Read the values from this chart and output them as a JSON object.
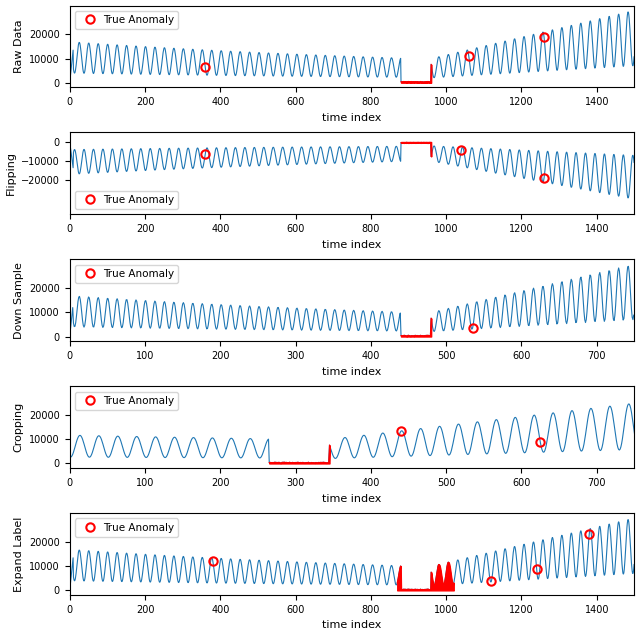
{
  "panels": [
    {
      "ylabel": "Raw Data",
      "xlim": [
        0,
        1500
      ],
      "ylim": [
        -2000,
        32000
      ],
      "yticks": [
        0,
        10000,
        20000
      ],
      "xticks": [
        0,
        200,
        400,
        600,
        800,
        1000,
        1200,
        1400
      ],
      "legend_loc": "upper left",
      "anomaly_fill": [
        880,
        960
      ],
      "anomaly_circles": [
        360,
        1060,
        1260
      ],
      "transform": "none",
      "crop_start": 0,
      "downsample": 1
    },
    {
      "ylabel": "Flipping",
      "xlim": [
        0,
        1500
      ],
      "ylim": [
        -38000,
        5000
      ],
      "yticks": [
        0,
        -10000,
        -20000
      ],
      "xticks": [
        0,
        200,
        400,
        600,
        800,
        1000,
        1200,
        1400
      ],
      "legend_loc": "lower left",
      "anomaly_fill": [
        880,
        960
      ],
      "anomaly_circles": [
        360,
        1040,
        1260
      ],
      "transform": "flip",
      "crop_start": 0,
      "downsample": 1
    },
    {
      "ylabel": "Down Sample",
      "xlim": [
        0,
        750
      ],
      "ylim": [
        -2000,
        32000
      ],
      "yticks": [
        0,
        10000,
        20000
      ],
      "xticks": [
        0,
        100,
        200,
        300,
        400,
        500,
        600,
        700
      ],
      "legend_loc": "upper left",
      "anomaly_fill": [
        440,
        480
      ],
      "anomaly_circles": [
        535
      ],
      "transform": "downsample",
      "crop_start": 0,
      "downsample": 2
    },
    {
      "ylabel": "Cropping",
      "xlim": [
        0,
        750
      ],
      "ylim": [
        -2000,
        32000
      ],
      "yticks": [
        0,
        10000,
        20000
      ],
      "xticks": [
        0,
        100,
        200,
        300,
        400,
        500,
        600,
        700
      ],
      "legend_loc": "upper left",
      "anomaly_fill": [
        265,
        345
      ],
      "anomaly_circles": [
        440,
        625
      ],
      "transform": "crop",
      "crop_start": 615,
      "downsample": 1
    },
    {
      "ylabel": "Expand Label",
      "xlim": [
        0,
        1500
      ],
      "ylim": [
        -2000,
        32000
      ],
      "yticks": [
        0,
        10000,
        20000
      ],
      "xticks": [
        0,
        200,
        400,
        600,
        800,
        1000,
        1200,
        1400
      ],
      "legend_loc": "upper left",
      "anomaly_fill": [
        870,
        1020
      ],
      "anomaly_circles": [
        380,
        1120,
        1240,
        1380
      ],
      "transform": "none",
      "crop_start": 0,
      "downsample": 1
    }
  ],
  "line_color": "#1f77b4",
  "anomaly_color": "red",
  "circle_color": "red",
  "bg_color": "white",
  "xlabel": "time index",
  "legend_label": "True Anomaly"
}
